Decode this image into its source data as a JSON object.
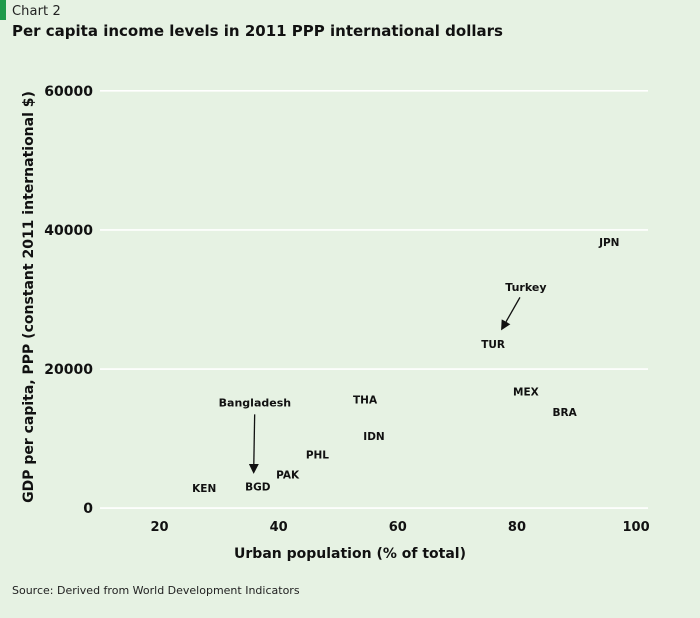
{
  "header": {
    "kicker": "Chart 2",
    "title": "Per capita income levels in 2011 PPP international dollars"
  },
  "source": "Source: Derived from World Development Indicators",
  "colors": {
    "background": "#e6f2e3",
    "accent": "#1f9a4b",
    "gridline": "#ffffff",
    "text": "#111111"
  },
  "chart_data": {
    "type": "scatter",
    "title": "Per capita income levels in 2011 PPP international dollars",
    "xlabel": "Urban population (% of total)",
    "ylabel": "GDP per capita, PPP (constant 2011 international $)",
    "xlim": [
      10,
      102
    ],
    "ylim": [
      -2000,
      63000
    ],
    "xticks": [
      20,
      40,
      60,
      80,
      100
    ],
    "yticks": [
      0,
      20000,
      40000,
      60000
    ],
    "grid": "horizontal",
    "points": [
      {
        "label": "KEN",
        "x": 27.5,
        "y": 2900
      },
      {
        "label": "BGD",
        "x": 36.5,
        "y": 3100
      },
      {
        "label": "PAK",
        "x": 41.5,
        "y": 4800
      },
      {
        "label": "PHL",
        "x": 46.5,
        "y": 7700
      },
      {
        "label": "THA",
        "x": 54.5,
        "y": 15600
      },
      {
        "label": "IDN",
        "x": 56.0,
        "y": 10400
      },
      {
        "label": "TUR",
        "x": 76.0,
        "y": 23600
      },
      {
        "label": "MEX",
        "x": 81.5,
        "y": 16800
      },
      {
        "label": "BRA",
        "x": 88.0,
        "y": 13800
      },
      {
        "label": "JPN",
        "x": 95.5,
        "y": 38300
      }
    ],
    "annotations": [
      {
        "text": "Bangladesh",
        "target": "BGD",
        "text_x": 36.0,
        "text_y": 15200,
        "arrow_to_x": 35.8,
        "arrow_to_y": 5200
      },
      {
        "text": "Turkey",
        "target": "TUR",
        "text_x": 81.5,
        "text_y": 31800,
        "arrow_to_x": 77.5,
        "arrow_to_y": 25800
      }
    ]
  }
}
